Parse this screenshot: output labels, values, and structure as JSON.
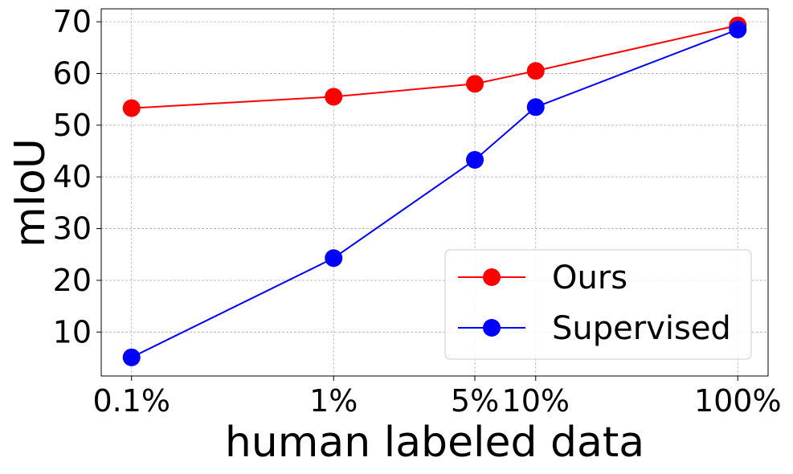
{
  "chart_data": {
    "type": "line",
    "title": "",
    "xlabel": "human labeled data",
    "ylabel": "mIoU",
    "x_scale": "log",
    "x": [
      0.1,
      1,
      5,
      10,
      100
    ],
    "x_tick_labels": [
      "0.1%",
      "1%",
      "5%",
      "10%",
      "100%"
    ],
    "y_ticks": [
      10,
      20,
      30,
      40,
      50,
      60,
      70
    ],
    "ylim": [
      1.5,
      72.5
    ],
    "grid": true,
    "legend_position": "lower-right",
    "series": [
      {
        "name": "Ours",
        "color": "#ff0000",
        "values": [
          53.3,
          55.5,
          58.0,
          60.5,
          69.3
        ]
      },
      {
        "name": "Supervised",
        "color": "#0000ff",
        "values": [
          5.1,
          24.3,
          43.3,
          53.5,
          68.5
        ]
      }
    ]
  }
}
